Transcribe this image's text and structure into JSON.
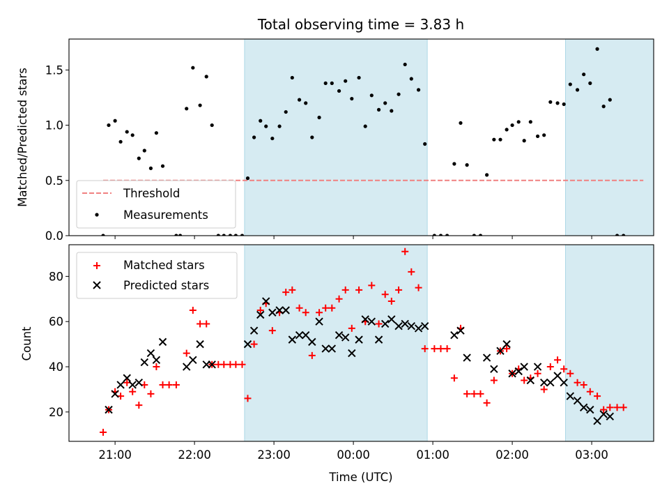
{
  "title": "Total observing time = 3.83 h",
  "colors": {
    "measurement": "#000000",
    "threshold": "#f08080",
    "matched": "#ff0000",
    "predicted": "#000000",
    "shade": "#add8e6"
  },
  "chart_data": [
    {
      "type": "scatter",
      "panel": "top",
      "title": "Total observing time = 3.83 h",
      "ylabel": "Matched/Predicted stars",
      "xlabel": "",
      "x_axis": "time (UTC), decimal hours",
      "xlim": [
        20.42,
        27.78
      ],
      "ylim": [
        0,
        1.78
      ],
      "yticks": [
        "0.0",
        "0.5",
        "1.0",
        "1.5"
      ],
      "shaded_intervals": [
        [
          22.63,
          24.93
        ],
        [
          26.67,
          28.25
        ]
      ],
      "threshold": {
        "name": "Threshold",
        "value": 0.5,
        "x_range": [
          20.85,
          27.65
        ]
      },
      "legend": [
        "Threshold",
        "Measurements"
      ],
      "legend_position": "lower-left",
      "series": [
        {
          "name": "Measurements",
          "points": [
            [
              20.85,
              0.0
            ],
            [
              20.92,
              1.0
            ],
            [
              21.0,
              1.04
            ],
            [
              21.07,
              0.85
            ],
            [
              21.15,
              0.94
            ],
            [
              21.22,
              0.91
            ],
            [
              21.3,
              0.7
            ],
            [
              21.37,
              0.77
            ],
            [
              21.45,
              0.61
            ],
            [
              21.52,
              0.93
            ],
            [
              21.6,
              0.63
            ],
            [
              21.77,
              0.0
            ],
            [
              21.82,
              0.0
            ],
            [
              21.9,
              1.15
            ],
            [
              21.98,
              1.52
            ],
            [
              22.07,
              1.18
            ],
            [
              22.15,
              1.44
            ],
            [
              22.22,
              1.0
            ],
            [
              22.3,
              0.0
            ],
            [
              22.37,
              0.0
            ],
            [
              22.45,
              0.0
            ],
            [
              22.52,
              0.0
            ],
            [
              22.6,
              0.0
            ],
            [
              22.67,
              0.52
            ],
            [
              22.75,
              0.89
            ],
            [
              22.83,
              1.04
            ],
            [
              22.9,
              0.99
            ],
            [
              22.98,
              0.88
            ],
            [
              23.07,
              0.99
            ],
            [
              23.15,
              1.12
            ],
            [
              23.23,
              1.43
            ],
            [
              23.32,
              1.23
            ],
            [
              23.4,
              1.2
            ],
            [
              23.48,
              0.89
            ],
            [
              23.57,
              1.07
            ],
            [
              23.65,
              1.38
            ],
            [
              23.73,
              1.38
            ],
            [
              23.82,
              1.31
            ],
            [
              23.9,
              1.4
            ],
            [
              23.98,
              1.24
            ],
            [
              24.07,
              1.43
            ],
            [
              24.15,
              0.99
            ],
            [
              24.23,
              1.27
            ],
            [
              24.32,
              1.14
            ],
            [
              24.4,
              1.2
            ],
            [
              24.48,
              1.13
            ],
            [
              24.57,
              1.28
            ],
            [
              24.65,
              1.55
            ],
            [
              24.73,
              1.42
            ],
            [
              24.82,
              1.32
            ],
            [
              24.9,
              0.83
            ],
            [
              25.02,
              0.0
            ],
            [
              25.1,
              0.0
            ],
            [
              25.18,
              0.0
            ],
            [
              25.27,
              0.65
            ],
            [
              25.35,
              1.02
            ],
            [
              25.43,
              0.64
            ],
            [
              25.52,
              0.0
            ],
            [
              25.6,
              0.0
            ],
            [
              25.68,
              0.55
            ],
            [
              25.77,
              0.87
            ],
            [
              25.85,
              0.87
            ],
            [
              25.93,
              0.96
            ],
            [
              26.0,
              1.0
            ],
            [
              26.08,
              1.03
            ],
            [
              26.15,
              0.86
            ],
            [
              26.23,
              1.03
            ],
            [
              26.32,
              0.9
            ],
            [
              26.4,
              0.91
            ],
            [
              26.48,
              1.21
            ],
            [
              26.57,
              1.2
            ],
            [
              26.65,
              1.19
            ],
            [
              26.73,
              1.37
            ],
            [
              26.82,
              1.32
            ],
            [
              26.9,
              1.46
            ],
            [
              26.98,
              1.38
            ],
            [
              27.07,
              1.69
            ],
            [
              27.15,
              1.17
            ],
            [
              27.23,
              1.23
            ],
            [
              27.32,
              0.0
            ],
            [
              27.4,
              0.0
            ]
          ]
        }
      ]
    },
    {
      "type": "scatter",
      "panel": "bottom",
      "title": "",
      "ylabel": "Count",
      "xlabel": "Time (UTC)",
      "x_axis": "time (UTC), decimal hours",
      "xlim": [
        20.42,
        27.78
      ],
      "ylim": [
        7,
        94
      ],
      "yticks": [
        "20",
        "40",
        "60",
        "80"
      ],
      "xticks": [
        "21:00",
        "22:00",
        "23:00",
        "00:00",
        "01:00",
        "02:00",
        "03:00"
      ],
      "xtick_hours": [
        21,
        22,
        23,
        24,
        25,
        26,
        27
      ],
      "shaded_intervals": [
        [
          22.63,
          24.93
        ],
        [
          26.67,
          28.25
        ]
      ],
      "legend": [
        "Matched stars",
        "Predicted stars"
      ],
      "legend_position": "upper-left",
      "series": [
        {
          "name": "Matched stars",
          "marker": "+",
          "points": [
            [
              20.85,
              11
            ],
            [
              20.92,
              21
            ],
            [
              21.0,
              29
            ],
            [
              21.07,
              27
            ],
            [
              21.15,
              33
            ],
            [
              21.22,
              29
            ],
            [
              21.3,
              23
            ],
            [
              21.37,
              32
            ],
            [
              21.45,
              28
            ],
            [
              21.52,
              40
            ],
            [
              21.6,
              32
            ],
            [
              21.68,
              32
            ],
            [
              21.77,
              32
            ],
            [
              21.9,
              46
            ],
            [
              21.98,
              65
            ],
            [
              22.07,
              59
            ],
            [
              22.15,
              59
            ],
            [
              22.22,
              41
            ],
            [
              22.3,
              41
            ],
            [
              22.37,
              41
            ],
            [
              22.45,
              41
            ],
            [
              22.52,
              41
            ],
            [
              22.6,
              41
            ],
            [
              22.67,
              26
            ],
            [
              22.75,
              50
            ],
            [
              22.83,
              65
            ],
            [
              22.9,
              68
            ],
            [
              22.98,
              56
            ],
            [
              23.07,
              64
            ],
            [
              23.15,
              73
            ],
            [
              23.23,
              74
            ],
            [
              23.32,
              66
            ],
            [
              23.4,
              64
            ],
            [
              23.48,
              45
            ],
            [
              23.57,
              64
            ],
            [
              23.65,
              66
            ],
            [
              23.73,
              66
            ],
            [
              23.82,
              70
            ],
            [
              23.9,
              74
            ],
            [
              23.98,
              57
            ],
            [
              24.07,
              74
            ],
            [
              24.15,
              60
            ],
            [
              24.23,
              76
            ],
            [
              24.32,
              59
            ],
            [
              24.4,
              72
            ],
            [
              24.48,
              69
            ],
            [
              24.57,
              74
            ],
            [
              24.65,
              91
            ],
            [
              24.73,
              82
            ],
            [
              24.82,
              75
            ],
            [
              24.9,
              48
            ],
            [
              25.02,
              48
            ],
            [
              25.1,
              48
            ],
            [
              25.18,
              48
            ],
            [
              25.27,
              35
            ],
            [
              25.35,
              57
            ],
            [
              25.43,
              28
            ],
            [
              25.52,
              28
            ],
            [
              25.6,
              28
            ],
            [
              25.68,
              24
            ],
            [
              25.77,
              34
            ],
            [
              25.85,
              47
            ],
            [
              25.93,
              48
            ],
            [
              26.0,
              37
            ],
            [
              26.08,
              39
            ],
            [
              26.15,
              34
            ],
            [
              26.23,
              35
            ],
            [
              26.32,
              37
            ],
            [
              26.4,
              30
            ],
            [
              26.48,
              40
            ],
            [
              26.57,
              43
            ],
            [
              26.65,
              39
            ],
            [
              26.73,
              37
            ],
            [
              26.82,
              33
            ],
            [
              26.9,
              32
            ],
            [
              26.98,
              29
            ],
            [
              27.07,
              27
            ],
            [
              27.15,
              21
            ],
            [
              27.23,
              22
            ],
            [
              27.32,
              22
            ],
            [
              27.4,
              22
            ]
          ]
        },
        {
          "name": "Predicted stars",
          "marker": "x",
          "points": [
            [
              20.92,
              21
            ],
            [
              21.0,
              28
            ],
            [
              21.07,
              32
            ],
            [
              21.15,
              35
            ],
            [
              21.22,
              32
            ],
            [
              21.3,
              33
            ],
            [
              21.37,
              42
            ],
            [
              21.45,
              46
            ],
            [
              21.52,
              43
            ],
            [
              21.6,
              51
            ],
            [
              21.9,
              40
            ],
            [
              21.98,
              43
            ],
            [
              22.07,
              50
            ],
            [
              22.15,
              41
            ],
            [
              22.22,
              41
            ],
            [
              22.67,
              50
            ],
            [
              22.75,
              56
            ],
            [
              22.83,
              63
            ],
            [
              22.9,
              69
            ],
            [
              22.98,
              64
            ],
            [
              23.07,
              65
            ],
            [
              23.15,
              65
            ],
            [
              23.23,
              52
            ],
            [
              23.32,
              54
            ],
            [
              23.4,
              54
            ],
            [
              23.48,
              51
            ],
            [
              23.57,
              60
            ],
            [
              23.65,
              48
            ],
            [
              23.73,
              48
            ],
            [
              23.82,
              54
            ],
            [
              23.9,
              53
            ],
            [
              23.98,
              46
            ],
            [
              24.07,
              52
            ],
            [
              24.15,
              61
            ],
            [
              24.23,
              60
            ],
            [
              24.32,
              52
            ],
            [
              24.4,
              59
            ],
            [
              24.48,
              61
            ],
            [
              24.57,
              58
            ],
            [
              24.65,
              59
            ],
            [
              24.73,
              58
            ],
            [
              24.82,
              57
            ],
            [
              24.9,
              58
            ],
            [
              25.27,
              54
            ],
            [
              25.35,
              56
            ],
            [
              25.43,
              44
            ],
            [
              25.68,
              44
            ],
            [
              25.77,
              39
            ],
            [
              25.85,
              47
            ],
            [
              25.93,
              50
            ],
            [
              26.0,
              37
            ],
            [
              26.08,
              38
            ],
            [
              26.15,
              40
            ],
            [
              26.23,
              34
            ],
            [
              26.32,
              40
            ],
            [
              26.4,
              33
            ],
            [
              26.48,
              33
            ],
            [
              26.57,
              36
            ],
            [
              26.65,
              33
            ],
            [
              26.73,
              27
            ],
            [
              26.82,
              25
            ],
            [
              26.9,
              22
            ],
            [
              26.98,
              21
            ],
            [
              27.07,
              16
            ],
            [
              27.15,
              19
            ],
            [
              27.23,
              18
            ]
          ]
        }
      ]
    }
  ]
}
